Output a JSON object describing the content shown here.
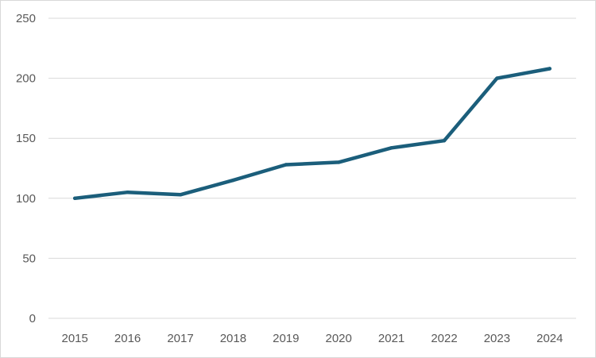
{
  "chart_data": {
    "type": "line",
    "title": "",
    "xlabel": "",
    "ylabel": "",
    "categories": [
      "2015",
      "2016",
      "2017",
      "2018",
      "2019",
      "2020",
      "2021",
      "2022",
      "2023",
      "2024"
    ],
    "series": [
      {
        "values": [
          100,
          105,
          103,
          115,
          128,
          130,
          142,
          148,
          200,
          208
        ],
        "color": "#1b5e7b"
      }
    ],
    "ylim": [
      0,
      250
    ],
    "yticks": [
      0,
      50,
      100,
      150,
      200,
      250
    ],
    "grid": true,
    "legend": "none"
  }
}
